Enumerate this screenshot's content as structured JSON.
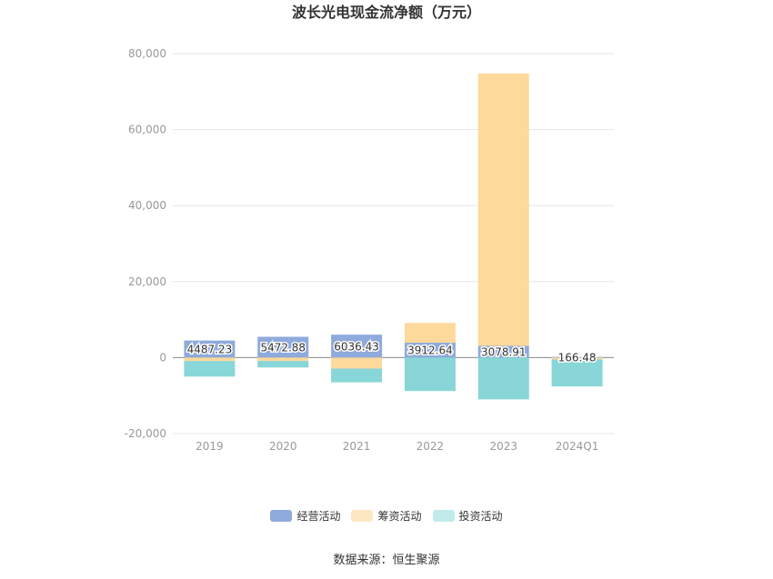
{
  "source": "数据来源：恒生聚源",
  "colors": {
    "axis_text": "#999999",
    "grid": "#e6e6e6",
    "zero_line": "#888888",
    "label_text": "#333333"
  },
  "chart_data": {
    "type": "bar",
    "stacked": true,
    "title": "波长光电现金流净额（万元）",
    "xlabel": "",
    "ylabel": "",
    "categories": [
      "2019",
      "2020",
      "2021",
      "2022",
      "2023",
      "2024Q1"
    ],
    "series": [
      {
        "name": "经营活动",
        "values": [
          4487.23,
          5472.88,
          6036.43,
          3912.64,
          3078.91,
          166.48
        ],
        "data_labels": [
          "4487.23",
          "5472.88",
          "6036.43",
          "3912.64",
          "3078.91",
          "166.48"
        ],
        "color": "#8FAADC",
        "legend_color": "#8FAADC"
      },
      {
        "name": "筹资活动",
        "values": [
          -900,
          -900,
          -2900,
          5200,
          71700,
          -500
        ],
        "color": "#FDD99B",
        "legend_color": "#FDE7C3"
      },
      {
        "name": "投资活动",
        "values": [
          -4100,
          -1700,
          -3600,
          -8800,
          -11000,
          -7100
        ],
        "color": "#88D6D7",
        "legend_color": "#C1EBEB"
      }
    ],
    "ylim": [
      -20000,
      80000
    ],
    "yticks": [
      -20000,
      0,
      20000,
      40000,
      60000,
      80000
    ],
    "ytick_labels": [
      "-20,000",
      "0",
      "20,000",
      "40,000",
      "60,000",
      "80,000"
    ],
    "grid": true,
    "legend_position": "bottom"
  }
}
